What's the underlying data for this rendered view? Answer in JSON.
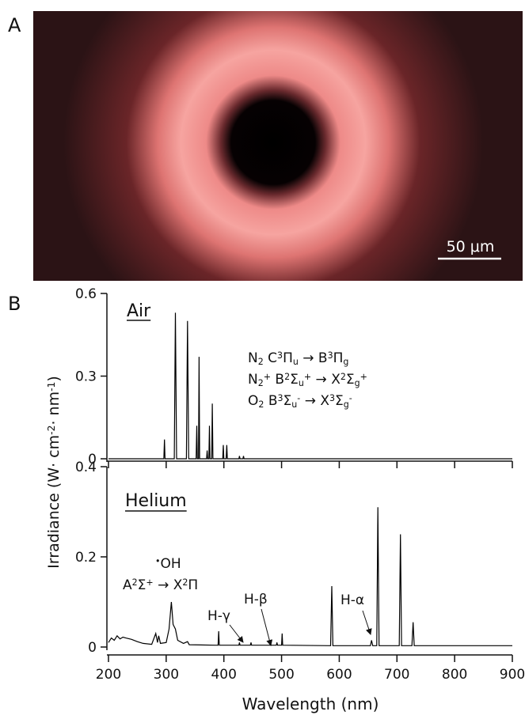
{
  "panel_labels": [
    "A",
    "B"
  ],
  "image": {
    "scale_bar": "50 μm"
  },
  "chart_data": [
    {
      "type": "line",
      "title": "Air",
      "color": "#000000",
      "x": [
        200,
        285,
        296,
        297,
        298,
        314,
        316,
        318,
        335,
        337,
        339,
        352,
        353,
        354,
        356,
        357,
        358,
        370,
        371,
        372,
        374,
        375,
        376,
        379,
        380,
        381,
        398,
        399,
        400,
        404,
        405,
        406,
        426,
        427,
        428,
        433,
        434,
        435,
        900
      ],
      "values": [
        0,
        0,
        0,
        0.07,
        0,
        0,
        0.53,
        0,
        0,
        0.5,
        0,
        0,
        0.12,
        0,
        0,
        0.37,
        0,
        0,
        0.03,
        0,
        0,
        0.12,
        0,
        0,
        0.2,
        0,
        0,
        0.05,
        0,
        0,
        0.05,
        0,
        0,
        0.01,
        0,
        0,
        0.01,
        0,
        0
      ],
      "xlim": [
        200,
        900
      ],
      "ylim": [
        0,
        0.6
      ],
      "xticks": [
        200,
        300,
        400,
        500,
        600,
        700,
        800,
        900
      ],
      "yticks": [
        0,
        0.3,
        0.6
      ],
      "annotations": [
        [
          "N",
          "2",
          " C",
          "3",
          "Π",
          "u",
          " → B",
          "3",
          "Π",
          "g"
        ],
        [
          "N",
          "2",
          "+",
          " B",
          "2",
          "Σ",
          "u",
          "+",
          " → X",
          "2",
          "Σ",
          "g",
          "+"
        ],
        [
          "O",
          "2",
          " B",
          "3",
          "Σ",
          "u",
          "-",
          " → X",
          "3",
          "Σ",
          "g",
          "-"
        ]
      ]
    },
    {
      "type": "line",
      "title": "Helium",
      "color": "#000000",
      "x": [
        200,
        205,
        210,
        215,
        220,
        225,
        230,
        240,
        250,
        260,
        275,
        282,
        285,
        287,
        290,
        300,
        305,
        309,
        312,
        316,
        320,
        330,
        337,
        340,
        385,
        390,
        391,
        392,
        426,
        427,
        428,
        446,
        447,
        448,
        491,
        492,
        493,
        500,
        501,
        502,
        585,
        587,
        589,
        654,
        656,
        658,
        665,
        667,
        669,
        704,
        706,
        708,
        726,
        728,
        730,
        900
      ],
      "values": [
        0.01,
        0.02,
        0.015,
        0.025,
        0.018,
        0.022,
        0.02,
        0.017,
        0.012,
        0.008,
        0.006,
        0.03,
        0.01,
        0.025,
        0.008,
        0.01,
        0.04,
        0.1,
        0.05,
        0.04,
        0.015,
        0.008,
        0.012,
        0.005,
        0.004,
        0.004,
        0.035,
        0.004,
        0.004,
        0.01,
        0.004,
        0.004,
        0.01,
        0.004,
        0.004,
        0.01,
        0.004,
        0.004,
        0.03,
        0.004,
        0.003,
        0.135,
        0.003,
        0.003,
        0.015,
        0.003,
        0.003,
        0.31,
        0.003,
        0.003,
        0.25,
        0.003,
        0.003,
        0.055,
        0.003,
        0.003
      ],
      "xlim": [
        200,
        900
      ],
      "ylim": [
        0,
        0.4
      ],
      "xticks": [
        200,
        300,
        400,
        500,
        600,
        700,
        800,
        900
      ],
      "yticks": [
        0,
        0.2,
        0.4
      ],
      "xlabel": "Wavelength (nm)",
      "ylabel": [
        "Irradiance (W· cm",
        "-2",
        "· nm",
        "-1",
        ")"
      ],
      "annotations": {
        "oh": [
          "•",
          "OH"
        ],
        "transition": [
          "A",
          "2",
          "Σ",
          "+",
          " → X",
          "2",
          "Π"
        ],
        "h_gamma": "H-γ",
        "h_beta": "H-β",
        "h_alpha": "H-α"
      }
    }
  ]
}
